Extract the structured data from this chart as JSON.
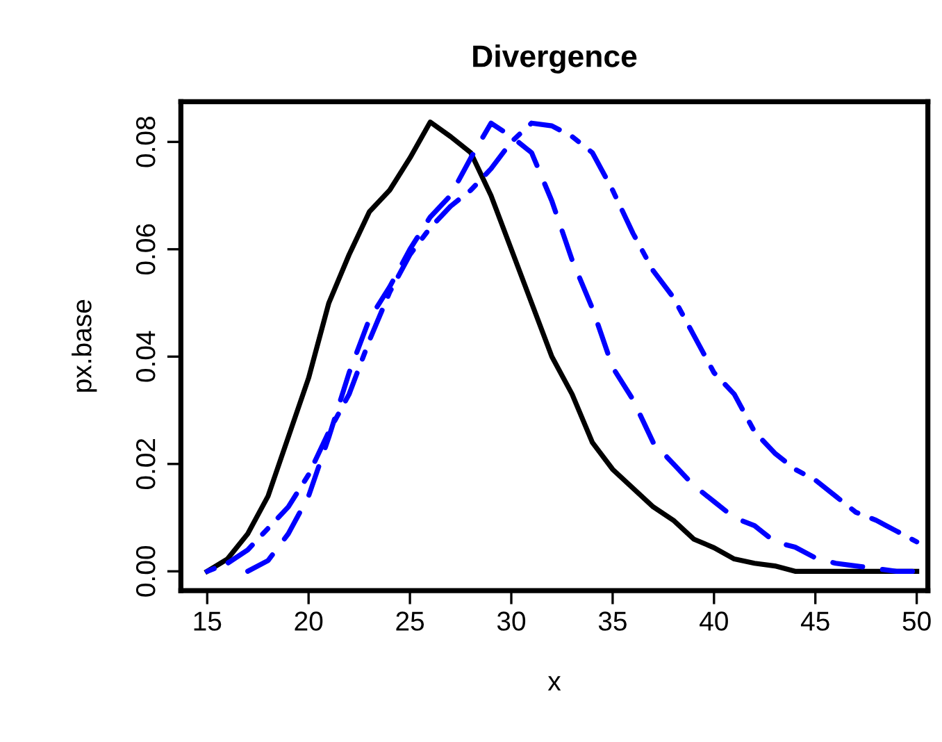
{
  "chart_data": {
    "type": "line",
    "title": "Divergence",
    "xlabel": "x",
    "ylabel": "px.base",
    "x": [
      15,
      16,
      17,
      18,
      19,
      20,
      21,
      22,
      23,
      24,
      25,
      26,
      27,
      28,
      29,
      30,
      31,
      32,
      33,
      34,
      35,
      36,
      37,
      38,
      39,
      40,
      41,
      42,
      43,
      44,
      45,
      46,
      47,
      48,
      49,
      50
    ],
    "xlim": [
      13.7,
      50.55
    ],
    "ylim": [
      -0.0036,
      0.0875
    ],
    "xticks": [
      15,
      20,
      25,
      30,
      35,
      40,
      45,
      50
    ],
    "yticks": [
      {
        "value": 0,
        "label": "0.00"
      },
      {
        "value": 0.02,
        "label": "0.02"
      },
      {
        "value": 0.04,
        "label": "0.04"
      },
      {
        "value": 0.06,
        "label": "0.06"
      },
      {
        "value": 0.08,
        "label": "0.08"
      }
    ],
    "grid": false,
    "legend": false,
    "marker": "none",
    "series": [
      {
        "color": "#000000",
        "line_style": "solid",
        "values": [
          0.0,
          0.0023,
          0.007,
          0.014,
          0.025,
          0.036,
          0.05,
          0.059,
          0.067,
          0.071,
          0.077,
          0.0837,
          0.081,
          0.078,
          0.07,
          0.06,
          0.05,
          0.04,
          0.033,
          0.024,
          0.019,
          0.0155,
          0.012,
          0.0095,
          0.006,
          0.0044,
          0.0023,
          0.0015,
          0.001,
          0.0,
          0.0,
          0.0,
          0.0,
          0.0,
          0.0,
          0.0
        ]
      },
      {
        "color": "#0000ff",
        "line_style": "dashed",
        "values": [
          null,
          null,
          0.0,
          0.002,
          0.007,
          0.014,
          0.025,
          0.037,
          0.047,
          0.053,
          0.06,
          0.066,
          0.07,
          0.077,
          0.0835,
          0.081,
          0.078,
          0.069,
          0.058,
          0.049,
          0.038,
          0.032,
          0.024,
          0.02,
          0.016,
          0.013,
          0.01,
          0.0085,
          0.0055,
          0.0045,
          0.0025,
          0.0015,
          0.001,
          0.0005,
          0.0,
          0.0
        ]
      },
      {
        "color": "#0000ff",
        "line_style": "dashdot",
        "values": [
          0.0,
          0.0015,
          0.004,
          0.008,
          0.012,
          0.018,
          0.026,
          0.033,
          0.043,
          0.052,
          0.059,
          0.064,
          0.068,
          0.071,
          0.075,
          0.08,
          0.0835,
          0.083,
          0.081,
          0.078,
          0.071,
          0.063,
          0.056,
          0.051,
          0.044,
          0.037,
          0.033,
          0.026,
          0.022,
          0.019,
          0.017,
          0.014,
          0.011,
          0.0095,
          0.0075,
          0.0055
        ]
      }
    ]
  }
}
